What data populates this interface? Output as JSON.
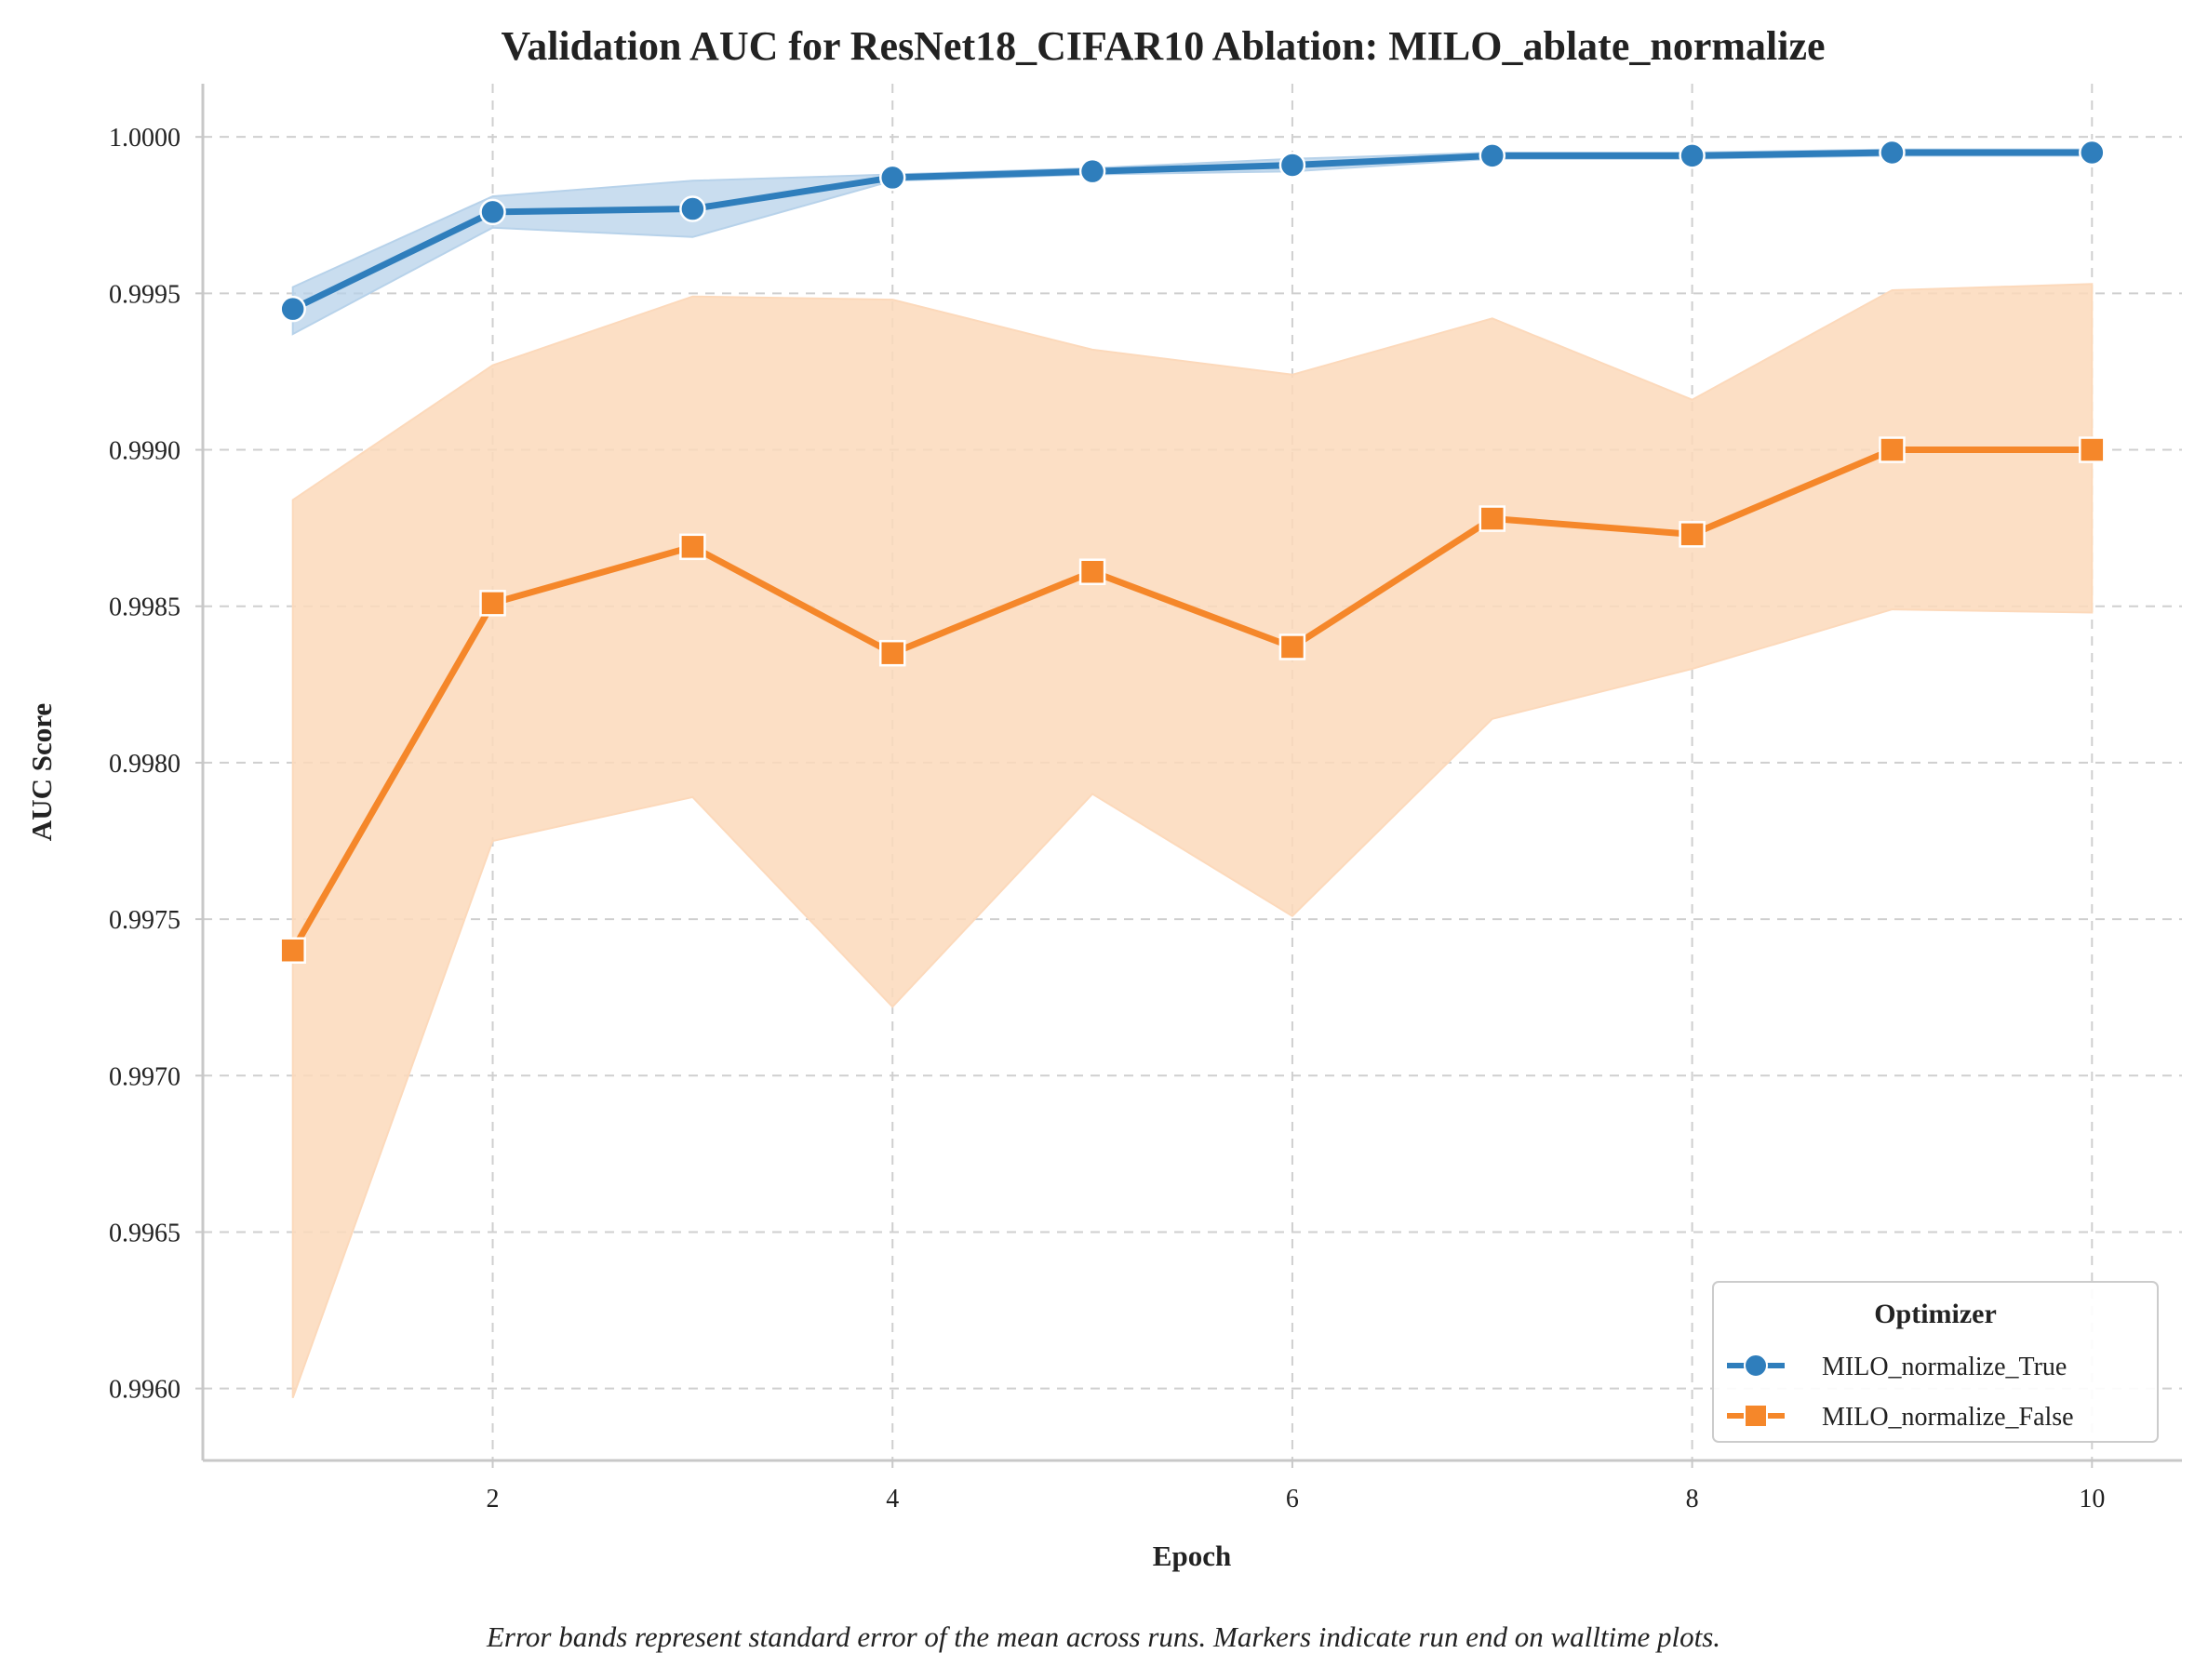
{
  "chart_data": {
    "type": "line",
    "title": "Validation AUC for ResNet18_CIFAR10 Ablation: MILO_ablate_normalize",
    "xlabel": "Epoch",
    "ylabel": "AUC Score",
    "caption": "Error bands represent standard error of the mean across runs. Markers indicate run end on walltime plots.",
    "xlim": [
      0.55,
      10.45
    ],
    "ylim": [
      0.99577,
      1.00017
    ],
    "xticks": [
      2,
      4,
      6,
      8,
      10
    ],
    "xtick_labels": [
      "2",
      "4",
      "6",
      "8",
      "10"
    ],
    "yticks": [
      0.996,
      0.9965,
      0.997,
      0.9975,
      0.998,
      0.9985,
      0.999,
      0.9995,
      1.0
    ],
    "ytick_labels": [
      "0.9960",
      "0.9965",
      "0.9970",
      "0.9975",
      "0.9980",
      "0.9985",
      "0.9990",
      "0.9995",
      "1.0000"
    ],
    "grid": true,
    "legend": {
      "title": "Optimizer",
      "position": "bottom-right"
    },
    "x": [
      1,
      2,
      3,
      4,
      5,
      6,
      7,
      8,
      9,
      10
    ],
    "series": [
      {
        "name": "MILO_normalize_True",
        "color": "#2f7ebc",
        "band_color": "#b7d2ea",
        "marker": "circle",
        "values": [
          0.99945,
          0.99976,
          0.99977,
          0.99987,
          0.99989,
          0.99991,
          0.99994,
          0.99994,
          0.99995,
          0.99995
        ],
        "lower": [
          0.99937,
          0.99971,
          0.99968,
          0.99986,
          0.99988,
          0.99989,
          0.99993,
          0.99993,
          0.99994,
          0.99994
        ],
        "upper": [
          0.99952,
          0.99981,
          0.99986,
          0.99988,
          0.9999,
          0.99993,
          0.99995,
          0.99995,
          0.99996,
          0.99996
        ]
      },
      {
        "name": "MILO_normalize_False",
        "color": "#f5872a",
        "band_color": "#fcd9bb",
        "marker": "square",
        "values": [
          0.9974,
          0.99851,
          0.99869,
          0.99835,
          0.99861,
          0.99837,
          0.99878,
          0.99873,
          0.999,
          0.999
        ],
        "lower": [
          0.99597,
          0.99775,
          0.99789,
          0.99722,
          0.9979,
          0.99751,
          0.99814,
          0.9983,
          0.99849,
          0.99848
        ],
        "upper": [
          0.99884,
          0.99927,
          0.99949,
          0.99948,
          0.99932,
          0.99924,
          0.99942,
          0.99916,
          0.99951,
          0.99953
        ]
      }
    ]
  }
}
